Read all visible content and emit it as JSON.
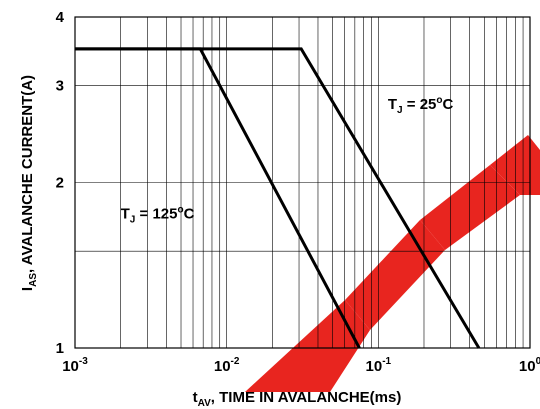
{
  "chart_data": {
    "type": "line",
    "xlabel": {
      "prefix": "t",
      "sub": "AV",
      "rest": ", TIME IN AVALANCHE(ms)"
    },
    "ylabel": {
      "prefix": "I",
      "sub": "AS",
      "rest": ", AVALANCHE CURRENT(A)"
    },
    "x_scale": "log",
    "y_scale": "log",
    "xlim": [
      0.001,
      1
    ],
    "ylim": [
      1,
      4
    ],
    "x_ticks": [
      {
        "value": 0.001,
        "base": "10",
        "exp": "-3"
      },
      {
        "value": 0.01,
        "base": "10",
        "exp": "-2"
      },
      {
        "value": 0.1,
        "base": "10",
        "exp": "-1"
      },
      {
        "value": 1,
        "base": "10",
        "exp": "0"
      }
    ],
    "y_ticks": [
      {
        "value": 1,
        "label": "1"
      },
      {
        "value": 2,
        "label": "2"
      },
      {
        "value": 3,
        "label": "3"
      },
      {
        "value": 4,
        "label": "4"
      }
    ],
    "grid": true,
    "series": [
      {
        "name": {
          "prefix": "T",
          "sub": "J",
          "mid": " = 125",
          "sup": "o",
          "end": "C"
        },
        "label_at": [
          0.0035,
          1.72
        ],
        "x": [
          0.001,
          0.0067,
          0.075
        ],
        "y": [
          3.5,
          3.5,
          1.0
        ]
      },
      {
        "name": {
          "prefix": "T",
          "sub": "J",
          "mid": " = 25",
          "sup": "o",
          "end": "C"
        },
        "label_at": [
          0.19,
          2.72
        ],
        "x": [
          0.001,
          0.031,
          0.46
        ],
        "y": [
          3.5,
          3.5,
          1.0
        ]
      }
    ],
    "watermark_color": "#e8251f"
  }
}
